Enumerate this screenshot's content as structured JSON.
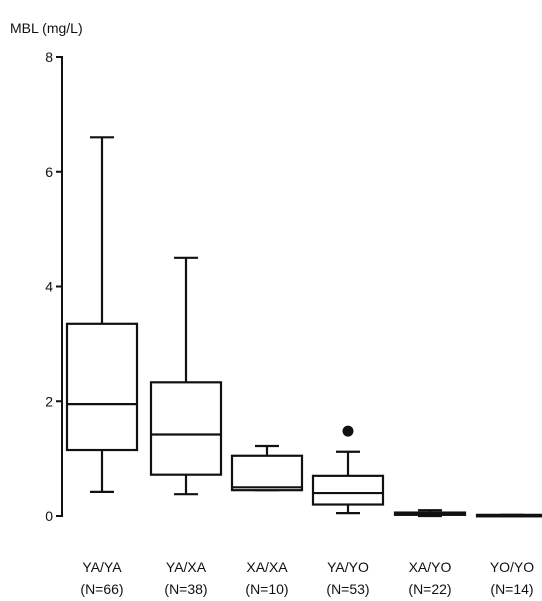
{
  "chart_data": {
    "type": "boxplot",
    "ylabel": "MBL (mg/L)",
    "xlabel": "",
    "ylim": [
      0,
      8
    ],
    "yticks": [
      0,
      2,
      4,
      6,
      8
    ],
    "grid": false,
    "colors": {
      "stroke": "#111111",
      "fill": "#ffffff",
      "outlier": "#111111"
    },
    "categories": [
      {
        "name": "YA/YA",
        "n": "(N=66)",
        "whisker_low": 0.42,
        "q1": 1.15,
        "median": 1.95,
        "q3": 3.35,
        "whisker_high": 6.6,
        "outliers": []
      },
      {
        "name": "YA/XA",
        "n": "(N=38)",
        "whisker_low": 0.38,
        "q1": 0.72,
        "median": 1.42,
        "q3": 2.33,
        "whisker_high": 4.5,
        "outliers": []
      },
      {
        "name": "XA/XA",
        "n": "(N=10)",
        "whisker_low": 0.45,
        "q1": 0.45,
        "median": 0.5,
        "q3": 1.05,
        "whisker_high": 1.22,
        "outliers": []
      },
      {
        "name": "YA/YO",
        "n": "(N=53)",
        "whisker_low": 0.05,
        "q1": 0.2,
        "median": 0.4,
        "q3": 0.7,
        "whisker_high": 1.12,
        "outliers": [
          1.48
        ]
      },
      {
        "name": "XA/YO",
        "n": "(N=22)",
        "whisker_low": 0.0,
        "q1": 0.02,
        "median": 0.04,
        "q3": 0.06,
        "whisker_high": 0.1,
        "outliers": []
      },
      {
        "name": "YO/YO",
        "n": "(N=14)",
        "whisker_low": 0.0,
        "q1": 0.0,
        "median": 0.01,
        "q3": 0.02,
        "whisker_high": 0.02,
        "outliers": []
      }
    ]
  }
}
